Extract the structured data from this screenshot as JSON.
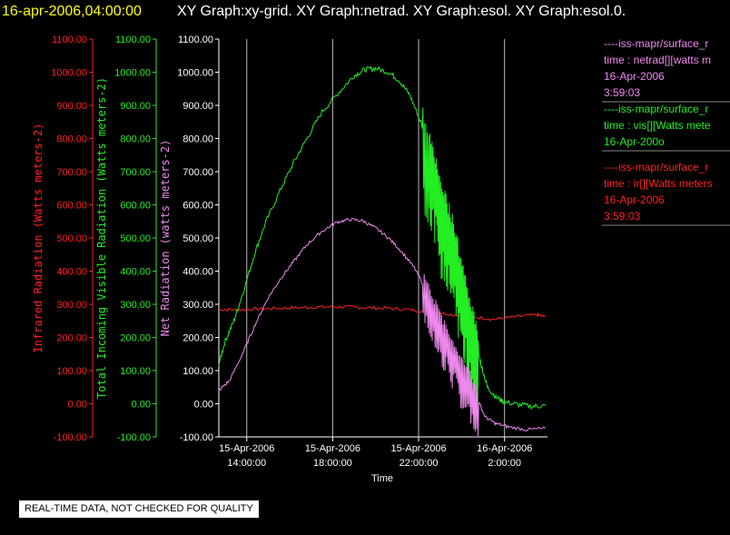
{
  "header": {
    "timestamp": "16-apr-2006,04:00:00",
    "graphs": "XY Graph:xy-grid.  XY Graph:netrad.  XY Graph:esol.  XY Graph:esol.0."
  },
  "colors": {
    "red": "#ff2020",
    "green": "#22ee22",
    "violet": "#ee88ee",
    "white": "#ffffff",
    "yellow": "#ffff00"
  },
  "notice": "REAL-TIME DATA, NOT CHECKED FOR QUALITY",
  "legend": [
    {
      "color": "#ee88ee",
      "lines": [
        "----iss-mapr/surface_r",
        "time : netrad[][watts m",
        "16-Apr-2006",
        "3:59:03"
      ]
    },
    {
      "color": "#22ee22",
      "lines": [
        "----iss-mapr/surface_r",
        "time : vis[][Watts mete",
        "16-Apr-200o"
      ]
    },
    {
      "color": "#ff2020",
      "lines": [
        "----iss-mapr/surface_r",
        "time : ir[][Watts meters",
        "16-Apr-2006",
        "3:59:03"
      ]
    }
  ],
  "chart_data": {
    "type": "line",
    "xlabel": "Time",
    "x_ticks": [
      {
        "date": "15-Apr-2006",
        "time": "14:00:00",
        "hours": 14
      },
      {
        "date": "15-Apr-2006",
        "time": "18:00:00",
        "hours": 18
      },
      {
        "date": "15-Apr-2006",
        "time": "22:00:00",
        "hours": 22
      },
      {
        "date": "16-Apr-2006",
        "time": "2:00:00",
        "hours": 26
      }
    ],
    "xlim_hours": [
      12.7,
      28.0
    ],
    "ylim": [
      -100,
      1100
    ],
    "y_ticks": [
      "-100.00",
      "0.00",
      "100.00",
      "200.00",
      "300.00",
      "400.00",
      "500.00",
      "600.00",
      "700.00",
      "800.00",
      "900.00",
      "1000.00",
      "1100.00"
    ],
    "y_axes": [
      {
        "label": "Infrared Radiation (Watts meters-2)",
        "color": "#ff2020"
      },
      {
        "label": "Total Incoming Visible Radiation (Watts meters-2)",
        "color": "#22ee22"
      },
      {
        "label": "Net Radiation (watts meters-2)",
        "color": "#ee88ee"
      }
    ],
    "series": [
      {
        "color": "#ff2020",
        "points": [
          [
            12.7,
            285
          ],
          [
            13.5,
            283
          ],
          [
            14.5,
            286
          ],
          [
            15.5,
            288
          ],
          [
            16.5,
            290
          ],
          [
            17.5,
            292
          ],
          [
            18.5,
            292
          ],
          [
            19.5,
            290
          ],
          [
            20.5,
            288
          ],
          [
            21.5,
            284
          ],
          [
            22.5,
            278
          ],
          [
            23.5,
            270
          ],
          [
            24.5,
            262
          ],
          [
            25.5,
            255
          ],
          [
            26.5,
            262
          ],
          [
            27.5,
            268
          ],
          [
            27.9,
            262
          ]
        ]
      },
      {
        "color": "#22ee22",
        "points": [
          [
            12.7,
            120
          ],
          [
            13.0,
            190
          ],
          [
            13.4,
            250
          ],
          [
            13.8,
            330
          ],
          [
            14.4,
            460
          ],
          [
            14.9,
            550
          ],
          [
            15.6,
            650
          ],
          [
            16.2,
            730
          ],
          [
            16.8,
            800
          ],
          [
            17.5,
            880
          ],
          [
            18.3,
            940
          ],
          [
            19.0,
            990
          ],
          [
            19.5,
            1008
          ],
          [
            20.0,
            1012
          ],
          [
            20.6,
            1000
          ],
          [
            21.1,
            975
          ],
          [
            21.6,
            930
          ],
          [
            22.1,
            850
          ],
          [
            22.5,
            760
          ],
          [
            22.8,
            680
          ],
          [
            23.1,
            600
          ],
          [
            23.4,
            540
          ],
          [
            23.7,
            470
          ],
          [
            24.0,
            380
          ],
          [
            24.3,
            290
          ],
          [
            24.6,
            200
          ],
          [
            24.9,
            120
          ],
          [
            25.2,
            50
          ],
          [
            25.6,
            20
          ],
          [
            26.0,
            5
          ],
          [
            26.6,
            -2
          ],
          [
            27.3,
            -8
          ],
          [
            27.9,
            -6
          ]
        ]
      },
      {
        "color": "#ee88ee",
        "points": [
          [
            12.7,
            40
          ],
          [
            13.2,
            70
          ],
          [
            13.8,
            150
          ],
          [
            14.4,
            240
          ],
          [
            15.0,
            320
          ],
          [
            15.6,
            380
          ],
          [
            16.2,
            430
          ],
          [
            16.8,
            480
          ],
          [
            17.5,
            520
          ],
          [
            18.2,
            548
          ],
          [
            18.8,
            556
          ],
          [
            19.4,
            552
          ],
          [
            20.0,
            530
          ],
          [
            20.6,
            500
          ],
          [
            21.2,
            460
          ],
          [
            21.8,
            410
          ],
          [
            22.3,
            350
          ],
          [
            22.7,
            290
          ],
          [
            23.1,
            230
          ],
          [
            23.5,
            170
          ],
          [
            23.9,
            120
          ],
          [
            24.3,
            80
          ],
          [
            24.7,
            20
          ],
          [
            25.1,
            -40
          ],
          [
            25.6,
            -60
          ],
          [
            26.2,
            -70
          ],
          [
            27.0,
            -78
          ],
          [
            27.9,
            -74
          ]
        ]
      }
    ]
  }
}
